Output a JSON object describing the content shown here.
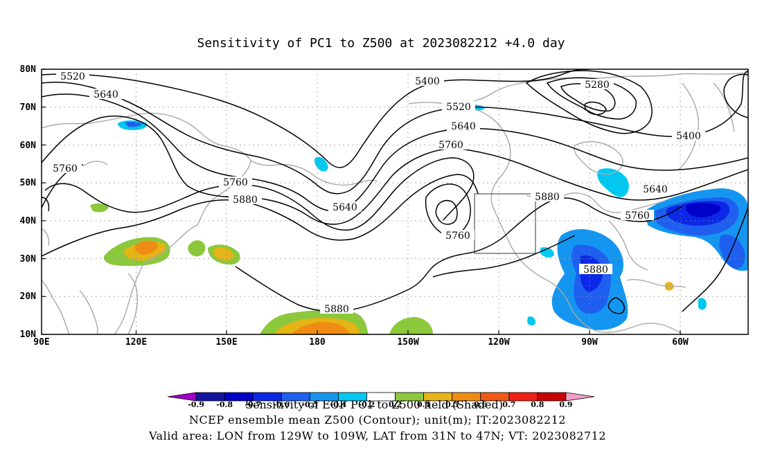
{
  "title": "Sensitivity of PC1 to Z500 at 2023082212 +4.0 day",
  "map": {
    "lat_labels": [
      "80N",
      "70N",
      "60N",
      "50N",
      "40N",
      "30N",
      "20N",
      "10N"
    ],
    "lon_labels": [
      "90E",
      "120E",
      "150E",
      "180",
      "150W",
      "120W",
      "90W",
      "60W"
    ],
    "contour_labels": [
      {
        "text": "5520"
      },
      {
        "text": "5640"
      },
      {
        "text": "5760"
      },
      {
        "text": "5400"
      },
      {
        "text": "5520"
      },
      {
        "text": "5640"
      },
      {
        "text": "5760"
      },
      {
        "text": "5760"
      },
      {
        "text": "5880"
      },
      {
        "text": "5640"
      },
      {
        "text": "5760"
      },
      {
        "text": "5880"
      },
      {
        "text": "5280"
      },
      {
        "text": "5400"
      },
      {
        "text": "5640"
      },
      {
        "text": "5760"
      },
      {
        "text": "5880"
      },
      {
        "text": "5880"
      }
    ]
  },
  "colorbar": {
    "tick_labels": [
      "-0.9",
      "-0.8",
      "-0.7",
      "-0.6",
      "-0.5",
      "-0.4",
      "-0.2",
      "0.2",
      "0.4",
      "0.5",
      "0.6",
      "0.7",
      "0.8",
      "0.9"
    ],
    "colors": [
      "#a000c8",
      "#1414a0",
      "#0000c8",
      "#0a28e6",
      "#1e5ff0",
      "#1496f0",
      "#00c8f0",
      "#ffffff",
      "#8cc83c",
      "#e6b414",
      "#f08c14",
      "#f05a14",
      "#f01e14",
      "#c80000",
      "#f0a0c8"
    ]
  },
  "footer": {
    "line1": "Sensitivity of EOF PC1 to Z500 field (Shaded)",
    "line2": "NCEP ensemble mean Z500 (Contour); unit(m); IT:2023082212",
    "line3": "Valid area: LON from 129W to 109W, LAT from 31N to 47N; VT: 2023082712"
  },
  "valid_box": {
    "lon_west": "129W",
    "lon_east": "109W",
    "lat_south": "31N",
    "lat_north": "47N"
  }
}
